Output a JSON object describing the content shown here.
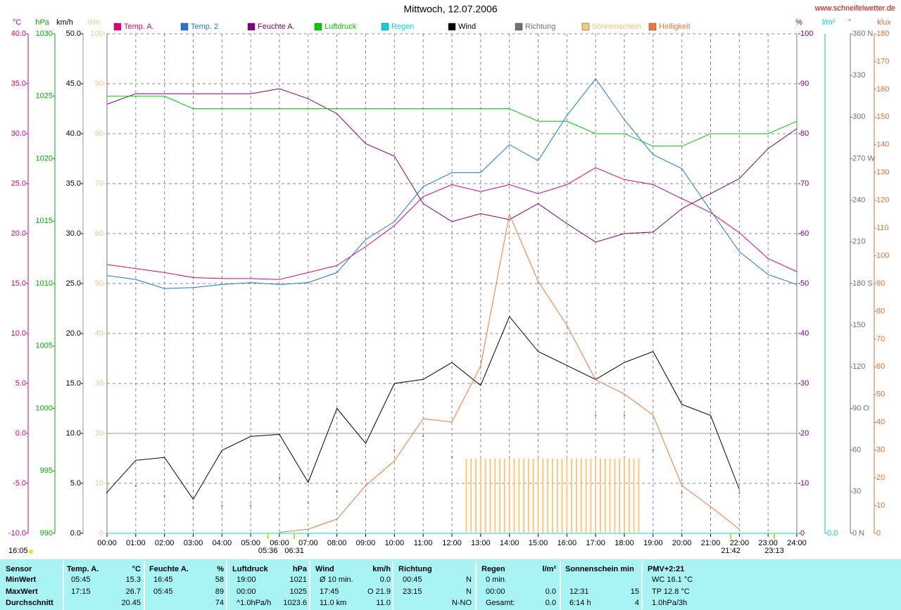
{
  "chart_data": {
    "type": "line",
    "title": "Mittwoch, 12.07.2006",
    "source": "www.schneifelwetter.de",
    "generated": "16:05",
    "x": [
      0,
      60,
      120,
      180,
      240,
      300,
      360,
      420,
      480,
      540,
      600,
      660,
      720,
      780,
      840,
      900,
      960,
      1020,
      1080,
      1140,
      1200,
      1260,
      1320,
      1380,
      1440
    ],
    "xlim": [
      0,
      1440
    ],
    "xticks": [
      {
        "value": 0,
        "label": "00:00"
      },
      {
        "value": 60,
        "label": "01:00"
      },
      {
        "value": 120,
        "label": "02:00"
      },
      {
        "value": 180,
        "label": "03:00"
      },
      {
        "value": 240,
        "label": "04:00"
      },
      {
        "value": 300,
        "label": "05:00"
      },
      {
        "value": 360,
        "label": "06:00"
      },
      {
        "value": 420,
        "label": "07:00"
      },
      {
        "value": 480,
        "label": "08:00"
      },
      {
        "value": 540,
        "label": "09:00"
      },
      {
        "value": 600,
        "label": "10:00"
      },
      {
        "value": 660,
        "label": "11:00"
      },
      {
        "value": 720,
        "label": "12:00"
      },
      {
        "value": 780,
        "label": "13:00"
      },
      {
        "value": 840,
        "label": "14:00"
      },
      {
        "value": 900,
        "label": "15:00"
      },
      {
        "value": 960,
        "label": "16:00"
      },
      {
        "value": 1020,
        "label": "17:00"
      },
      {
        "value": 1080,
        "label": "18:00"
      },
      {
        "value": 1140,
        "label": "19:00"
      },
      {
        "value": 1200,
        "label": "20:00"
      },
      {
        "value": 1260,
        "label": "21:00"
      },
      {
        "value": 1320,
        "label": "22:00"
      },
      {
        "value": 1380,
        "label": "23:00"
      },
      {
        "value": 1440,
        "label": "24:00"
      }
    ],
    "grid": true,
    "axes": {
      "temp": {
        "label": "°C",
        "color": "#d0008a",
        "lim": [
          -10,
          40
        ],
        "ticks": [
          {
            "value": -10,
            "label": "-10.0"
          },
          {
            "value": -5,
            "label": "-5.0"
          },
          {
            "value": 0,
            "label": "0.0"
          },
          {
            "value": 5,
            "label": "5.0"
          },
          {
            "value": 10,
            "label": "10.0"
          },
          {
            "value": 15,
            "label": "15.0"
          },
          {
            "value": 20,
            "label": "20.0"
          },
          {
            "value": 25,
            "label": "25.0"
          },
          {
            "value": 30,
            "label": "30.0"
          },
          {
            "value": 35,
            "label": "35.0"
          },
          {
            "value": 40,
            "label": "40.0"
          }
        ]
      },
      "press": {
        "label": "hPa",
        "color": "#00b000",
        "lim": [
          990,
          1030
        ],
        "ticks": [
          990,
          995,
          1000,
          1005,
          1010,
          1015,
          1020,
          1025,
          1030
        ]
      },
      "wind": {
        "label": "km/h",
        "color": "#000000",
        "lim": [
          0,
          50
        ],
        "ticks": [
          {
            "value": 0,
            "label": "0.0"
          },
          {
            "value": 5,
            "label": "5.0"
          },
          {
            "value": 10,
            "label": "10.0"
          },
          {
            "value": 15,
            "label": "15.0"
          },
          {
            "value": 20,
            "label": "20.0"
          },
          {
            "value": 25,
            "label": "25.0"
          },
          {
            "value": 30,
            "label": "30.0"
          },
          {
            "value": 35,
            "label": "35.0"
          },
          {
            "value": 40,
            "label": "40.0"
          },
          {
            "value": 45,
            "label": "45.0"
          },
          {
            "value": 50,
            "label": "50.0"
          }
        ]
      },
      "min": {
        "label": "min",
        "color": "#f0c890",
        "lim": [
          0,
          100
        ],
        "ticks": [
          0,
          10,
          20,
          30,
          40,
          50,
          60,
          70,
          80,
          90,
          100
        ]
      },
      "pct": {
        "label": "%",
        "color": "#800080",
        "lim": [
          0,
          100
        ],
        "ticks": [
          0,
          10,
          20,
          30,
          40,
          50,
          60,
          70,
          80,
          90,
          100
        ]
      },
      "rain": {
        "label": "l/m²",
        "color": "#00c8e0",
        "ticks": [
          {
            "value": 0,
            "label": "0.0"
          }
        ]
      },
      "dir": {
        "label": "°",
        "color": "#707070",
        "lim": [
          0,
          360
        ],
        "ticks": [
          {
            "value": 0,
            "label": "0 N"
          },
          30,
          60,
          {
            "value": 90,
            "label": "90 O"
          },
          120,
          150,
          {
            "value": 180,
            "label": "180 S"
          },
          210,
          240,
          {
            "value": 270,
            "label": "270 W"
          },
          300,
          330,
          {
            "value": 360,
            "label": "360 N"
          }
        ]
      },
      "klux": {
        "label": "klux",
        "color": "#e07030",
        "lim": [
          0,
          180
        ],
        "ticks": [
          0,
          10,
          20,
          30,
          40,
          50,
          60,
          70,
          80,
          90,
          100,
          110,
          120,
          130,
          140,
          150,
          160,
          170,
          180
        ]
      }
    },
    "series": [
      {
        "name": "Temp. A.",
        "color": "#e0007f",
        "axis": "temp",
        "type": "line",
        "values": [
          16.9,
          16.5,
          16.1,
          15.6,
          15.5,
          15.5,
          15.4,
          16.1,
          16.8,
          18.7,
          20.8,
          23.7,
          24.9,
          24.2,
          24.9,
          24.0,
          24.9,
          26.6,
          25.4,
          24.9,
          23.5,
          22.1,
          20.1,
          17.5,
          16.2
        ]
      },
      {
        "name": "Temp. 2",
        "color": "#1e78d8",
        "axis": "temp",
        "type": "line",
        "values": [
          15.8,
          15.4,
          14.5,
          14.6,
          14.9,
          15.1,
          14.9,
          15.1,
          16.1,
          19.4,
          21.2,
          24.7,
          26.1,
          26.1,
          28.9,
          27.3,
          31.8,
          35.5,
          31.4,
          27.9,
          26.5,
          22.3,
          18.2,
          15.9,
          14.9
        ]
      },
      {
        "name": "Feuchte A.",
        "color": "#800080",
        "axis": "pct",
        "type": "line",
        "values": [
          85.9,
          88,
          88,
          88,
          88,
          88,
          89,
          87,
          84,
          78,
          75.5,
          66,
          62.4,
          64,
          62.8,
          66,
          62,
          58.3,
          60,
          60.3,
          65,
          68,
          71,
          77,
          81
        ]
      },
      {
        "name": "Luftdruck",
        "color": "#00cc00",
        "axis": "press",
        "type": "line",
        "values": [
          1025,
          1025,
          1025,
          1024,
          1024,
          1024,
          1024,
          1024,
          1024,
          1024,
          1024,
          1024,
          1024,
          1024,
          1024,
          1023,
          1023,
          1022,
          1022,
          1021,
          1021,
          1022,
          1022,
          1022,
          1023
        ]
      },
      {
        "name": "Regen",
        "color": "#00d8e8",
        "axis": "rain",
        "type": "line",
        "values": [
          0,
          0,
          0,
          0,
          0,
          0,
          0,
          0,
          0,
          0,
          0,
          0,
          0,
          0,
          0,
          0,
          0,
          0,
          0,
          0,
          0,
          0,
          0,
          0,
          0
        ]
      },
      {
        "name": "Wind",
        "color": "#000000",
        "axis": "wind",
        "type": "line",
        "values": [
          4.1,
          7.3,
          7.6,
          3.4,
          8.3,
          9.7,
          9.9,
          5.1,
          12.5,
          9.0,
          15.0,
          15.4,
          17.1,
          14.8,
          21.7,
          18.2,
          16.8,
          15.4,
          17.1,
          18.2,
          12.9,
          11.8,
          4.4,
          null,
          null
        ]
      },
      {
        "name": "Richtung",
        "color": "#707070",
        "axis": "dir",
        "type": "dots",
        "values": [
          29,
          34,
          27,
          19,
          20,
          20,
          40,
          22,
          30,
          51,
          60,
          70,
          55,
          29,
          34,
          20,
          29,
          85,
          85,
          60,
          29,
          34,
          29,
          null,
          null
        ]
      },
      {
        "name": "Sonnenschein",
        "color": "#f8c880",
        "axis": "min",
        "type": "bars",
        "x": [
          750,
          760,
          770,
          780,
          790,
          800,
          810,
          820,
          830,
          840,
          850,
          860,
          870,
          880,
          890,
          900,
          910,
          920,
          930,
          940,
          950,
          960,
          970,
          980,
          990,
          1000,
          1010,
          1020,
          1030,
          1040,
          1050,
          1060,
          1070,
          1080,
          1090,
          1100,
          1110
        ],
        "values": [
          15,
          15,
          15,
          15,
          15,
          15,
          15,
          15,
          15,
          15,
          15,
          15,
          15,
          15,
          15,
          15,
          15,
          15,
          15,
          15,
          15,
          15,
          15,
          15,
          15,
          15,
          15,
          15,
          15,
          15,
          15,
          15,
          15,
          15,
          15,
          15,
          15
        ]
      },
      {
        "name": "Helligkeit",
        "color": "#f07838",
        "axis": "klux",
        "type": "line",
        "values": [
          null,
          null,
          null,
          null,
          null,
          null,
          0.3,
          1.5,
          5.1,
          17.2,
          26.1,
          41.3,
          40.1,
          60.3,
          114.9,
          90.8,
          75,
          55.3,
          50.2,
          42.6,
          17.2,
          9.6,
          1.5,
          null,
          null
        ]
      }
    ],
    "annotations": [
      {
        "text": "05:36",
        "time": 336
      },
      {
        "text": "06:31",
        "time": 391
      },
      {
        "text": "21:42",
        "time": 1302
      },
      {
        "text": "23:13",
        "time": 1393
      }
    ]
  },
  "table": {
    "sections": [
      {
        "header": {
          "left": "Sensor"
        },
        "rows": [
          {
            "left": "MinWert"
          },
          {
            "left": "MaxWert"
          },
          {
            "left": "Durchschnitt"
          }
        ]
      },
      {
        "header": {
          "left": "Temp. A.",
          "right": "°C"
        },
        "rows": [
          {
            "left": "05:45",
            "right": "15.3"
          },
          {
            "left": "17:15",
            "right": "26.7"
          },
          {
            "right": "20.45"
          }
        ]
      },
      {
        "header": {
          "left": "Feuchte A.",
          "right": "%"
        },
        "rows": [
          {
            "left": "16:45",
            "right": "58"
          },
          {
            "left": "05:45",
            "right": "89"
          },
          {
            "right": "74"
          }
        ]
      },
      {
        "header": {
          "left": "Luftdruck",
          "right": "hPa"
        },
        "rows": [
          {
            "left": "19:00",
            "right": "1021"
          },
          {
            "left": "00:00",
            "right": "1025"
          },
          {
            "left": "^1.0hPa/h",
            "right": "1023.6"
          }
        ]
      },
      {
        "header": {
          "left": "Wind",
          "right": "km/h"
        },
        "rows": [
          {
            "left": "Ø 10 min.",
            "right": "0.0"
          },
          {
            "left": "17:45",
            "right": "O 21.9"
          },
          {
            "left": "11.0 km",
            "right": "11.0"
          }
        ]
      },
      {
        "header": {
          "left": "Richtung"
        },
        "rows": [
          {
            "left": "00:45",
            "right": "N"
          },
          {
            "left": "23:15",
            "right": "N"
          },
          {
            "right": "N-NO"
          }
        ]
      },
      {
        "header": {
          "left": "Regen",
          "right": "l/m²"
        },
        "rows": [
          {
            "left": "0 min."
          },
          {
            "left": "00:00",
            "right": "0.0"
          },
          {
            "left": "Gesamt:",
            "right": "0.0"
          }
        ]
      },
      {
        "header": {
          "left": "Sonnenschein min"
        },
        "rows": [
          {},
          {
            "left": "12:31",
            "right": "15"
          },
          {
            "left": "6:14 h",
            "right": "4"
          }
        ]
      },
      {
        "header": {
          "left": "PMV+2:21"
        },
        "rows": [
          {
            "left": "WC 16.1 °C"
          },
          {
            "left": "TP 12.8 °C"
          },
          {
            "left": "1.0hPa/3h"
          }
        ]
      }
    ]
  }
}
